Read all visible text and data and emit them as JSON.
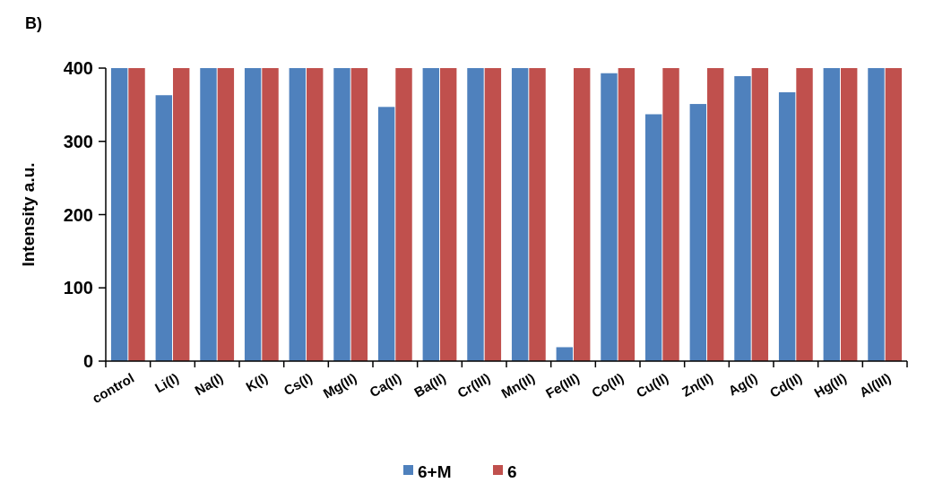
{
  "chart_data": {
    "type": "bar",
    "title": "B)",
    "ylabel": "Intensity a.u.",
    "categories": [
      "control",
      "Li(I)",
      "Na(I)",
      "K(I)",
      "Cs(I)",
      "Mg(II)",
      "Ca(II)",
      "Ba(II)",
      "Cr(III)",
      "Mn(II)",
      "Fe(III)",
      "Co(II)",
      "Cu(II)",
      "Zn(II)",
      "Ag(I)",
      "Cd(II)",
      "Hg(II)",
      "Al(III)"
    ],
    "series": [
      {
        "name": "6+M",
        "color": "#4f81bd",
        "values": [
          400,
          363,
          400,
          400,
          400,
          400,
          347,
          400,
          400,
          400,
          19,
          393,
          337,
          351,
          389,
          367,
          400,
          400
        ]
      },
      {
        "name": "6",
        "color": "#c0504d",
        "values": [
          400,
          400,
          400,
          400,
          400,
          400,
          400,
          400,
          400,
          400,
          400,
          400,
          400,
          400,
          400,
          400,
          400,
          400
        ]
      }
    ],
    "ylim": [
      0,
      400
    ],
    "yticks": [
      0,
      100,
      200,
      300,
      400
    ],
    "grid": false,
    "legend": "bottom"
  }
}
